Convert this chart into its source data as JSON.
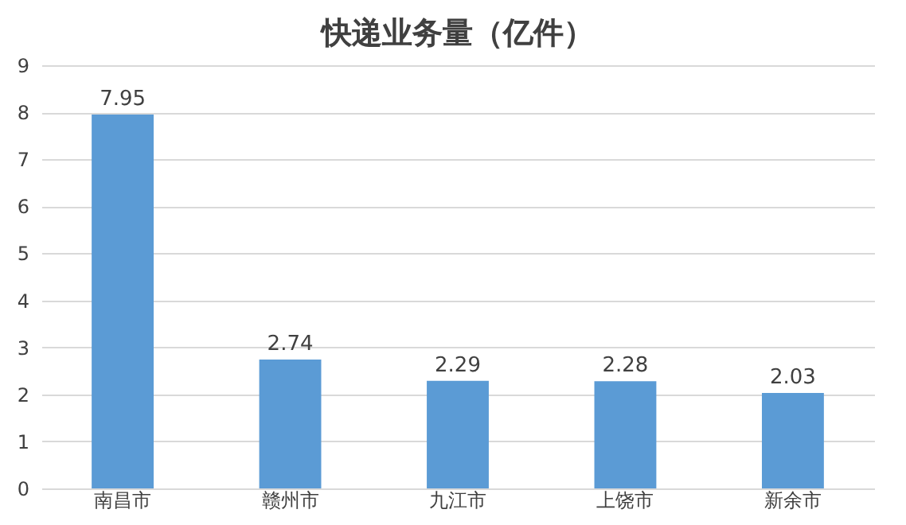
{
  "chart_data": {
    "type": "bar",
    "title": "快递业务量（亿件）",
    "categories": [
      "南昌市",
      "赣州市",
      "九江市",
      "上饶市",
      "新余市"
    ],
    "values": [
      7.95,
      2.74,
      2.29,
      2.28,
      2.03
    ],
    "color": "#5b9bd5",
    "ylim": [
      0,
      9
    ],
    "yticks": [
      0,
      1,
      2,
      3,
      4,
      5,
      6,
      7,
      8,
      9
    ],
    "grid": "y",
    "data_labels": true
  }
}
